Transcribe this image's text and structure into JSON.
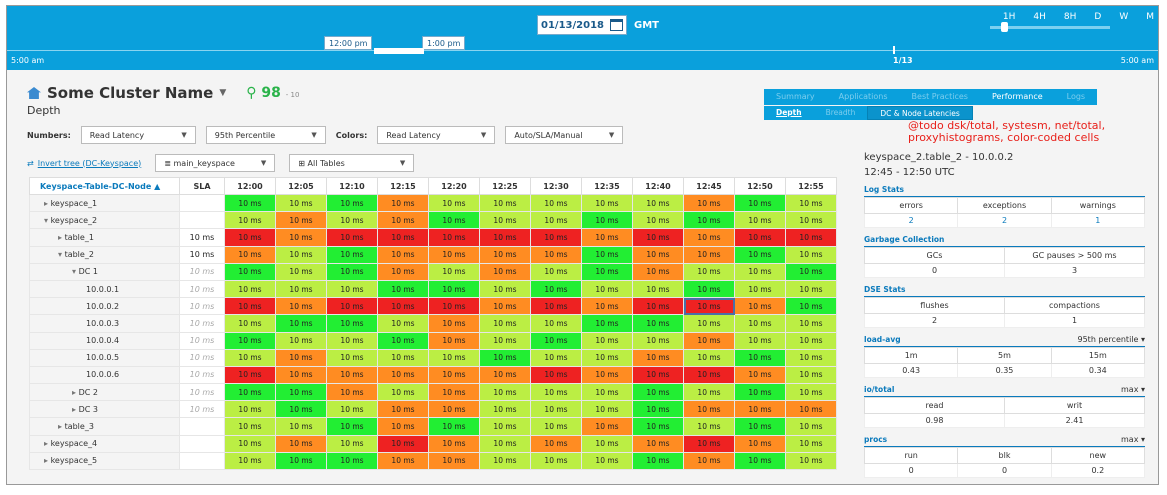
{
  "timebar": {
    "date": "01/13/2018",
    "timezone": "GMT",
    "zoom_levels": [
      "1H",
      "4H",
      "8H",
      "D",
      "W",
      "M"
    ],
    "left_time": "5:00 am",
    "right_time": "5:00 am",
    "marker_label": "1/13",
    "sel_start": "12:00 pm",
    "sel_end": "1:00 pm"
  },
  "header": {
    "cluster_name": "Some Cluster Name",
    "score": "98",
    "score_delta": "- 10",
    "subtitle": "Depth"
  },
  "tabs": [
    "Summary",
    "Applications",
    "Best Practices",
    "Performance",
    "Logs"
  ],
  "subtabs": [
    "Depth",
    "Breadth",
    "DC & Node Latencies"
  ],
  "note": "@todo dsk/total, systesm, net/total, proxyhistograms, color-coded cells",
  "controls": {
    "numbers_label": "Numbers:",
    "numbers_metric": "Read Latency",
    "percentile": "95th Percentile",
    "colors_label": "Colors:",
    "colors_metric": "Read Latency",
    "color_mode": "Auto/SLA/Manual",
    "invert_link": "Invert tree (DC-Keyspace)",
    "keyspace": "main_keyspace",
    "tables": "All Tables"
  },
  "grid": {
    "header_name": "Keyspace-Table-DC-Node",
    "header_sla": "SLA",
    "times": [
      "12:00",
      "12:05",
      "12:10",
      "12:15",
      "12:20",
      "12:25",
      "12:30",
      "12:35",
      "12:40",
      "12:45",
      "12:50",
      "12:55"
    ],
    "cell_value": "10 ms",
    "rows": [
      {
        "label": "keyspace_1",
        "prefix": "▸ ",
        "indent": 0,
        "sla": "",
        "sla_italic": false,
        "colors": "glgolllllogl"
      },
      {
        "label": "keyspace_2",
        "prefix": "▾ ",
        "indent": 0,
        "sla": "",
        "sla_italic": false,
        "colors": "lologllglgll"
      },
      {
        "label": "table_1",
        "prefix": "▸ ",
        "indent": 1,
        "sla": "10 ms",
        "sla_italic": false,
        "colors": "rorrrrrororr"
      },
      {
        "label": "table_2",
        "prefix": "▾ ",
        "indent": 1,
        "sla": "10 ms",
        "sla_italic": false,
        "colors": "olgoooogoogl"
      },
      {
        "label": "DC 1",
        "prefix": "▾ ",
        "indent": 2,
        "sla": "10 ms",
        "sla_italic": true,
        "colors": "glgololgollg"
      },
      {
        "label": "10.0.0.1",
        "prefix": "",
        "indent": 3,
        "sla": "10 ms",
        "sla_italic": true,
        "colors": "lllgglgllgll"
      },
      {
        "label": "10.0.0.2",
        "prefix": "",
        "indent": 3,
        "sla": "10 ms",
        "sla_italic": true,
        "colors": "rorrrororrog"
      },
      {
        "label": "10.0.0.3",
        "prefix": "",
        "indent": 3,
        "sla": "10 ms",
        "sla_italic": true,
        "colors": "lgglollgglll"
      },
      {
        "label": "10.0.0.4",
        "prefix": "",
        "indent": 3,
        "sla": "10 ms",
        "sla_italic": true,
        "colors": "gllgolglloll"
      },
      {
        "label": "10.0.0.5",
        "prefix": "",
        "indent": 3,
        "sla": "10 ms",
        "sla_italic": true,
        "colors": "lolllgllolgl"
      },
      {
        "label": "10.0.0.6",
        "prefix": "",
        "indent": 3,
        "sla": "10 ms",
        "sla_italic": true,
        "colors": "rooooororrol"
      },
      {
        "label": "DC 2",
        "prefix": "▸ ",
        "indent": 2,
        "sla": "10 ms",
        "sla_italic": true,
        "colors": "ggololllglgl"
      },
      {
        "label": "DC 3",
        "prefix": "▸ ",
        "indent": 2,
        "sla": "10 ms",
        "sla_italic": true,
        "colors": "lgloolllgooo"
      },
      {
        "label": "table_3",
        "prefix": "▸ ",
        "indent": 1,
        "sla": "",
        "sla_italic": false,
        "colors": "llgoglloglgl"
      },
      {
        "label": "keyspace_4",
        "prefix": "▸ ",
        "indent": 0,
        "sla": "",
        "sla_italic": false,
        "colors": "lolrololorol"
      },
      {
        "label": "keyspace_5",
        "prefix": "▸ ",
        "indent": 0,
        "sla": "",
        "sla_italic": false,
        "colors": "lggoolllgogl"
      }
    ]
  },
  "context": {
    "line1": "keyspace_2.table_2 - 10.0.0.2",
    "line2": "12:45 - 12:50 UTC"
  },
  "stats": [
    {
      "title": "Log Stats",
      "agg": "",
      "cols": [
        "errors",
        "exceptions",
        "warnings"
      ],
      "vals": [
        "2",
        "2",
        "1"
      ],
      "blue": true
    },
    {
      "title": "Garbage Collection",
      "agg": "",
      "cols": [
        "GCs",
        "GC pauses > 500 ms"
      ],
      "vals": [
        "0",
        "3"
      ],
      "blue": false
    },
    {
      "title": "DSE Stats",
      "agg": "",
      "cols": [
        "flushes",
        "compactions"
      ],
      "vals": [
        "2",
        "1"
      ],
      "blue": false
    },
    {
      "title": "load-avg",
      "agg": "95th percentile ▾",
      "cols": [
        "1m",
        "5m",
        "15m"
      ],
      "vals": [
        "0.43",
        "0.35",
        "0.34"
      ],
      "blue": false
    },
    {
      "title": "io/total",
      "agg": "max ▾",
      "cols": [
        "read",
        "writ"
      ],
      "vals": [
        "0.98",
        "2.41"
      ],
      "blue": false
    },
    {
      "title": "procs",
      "agg": "max ▾",
      "cols": [
        "run",
        "blk",
        "new"
      ],
      "vals": [
        "0",
        "0",
        "0.2"
      ],
      "blue": false
    }
  ],
  "colors": {
    "green": "#22ee33",
    "lime": "#bbee44",
    "orange": "#ff8c22",
    "red": "#ee2222",
    "accent": "#0aa0dc"
  }
}
